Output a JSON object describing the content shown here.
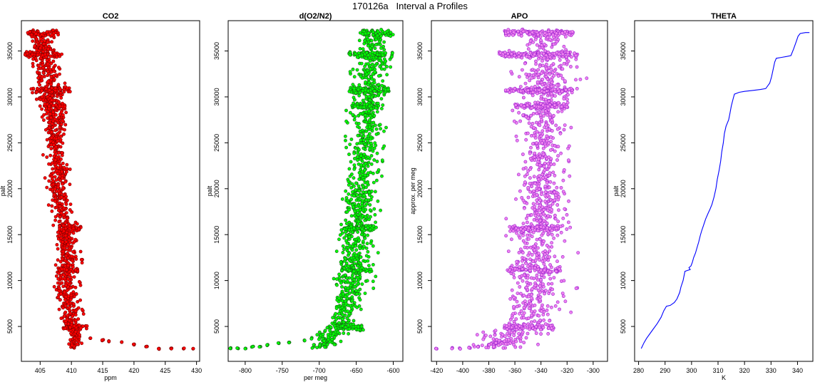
{
  "figure": {
    "title": "170126a   Interval a Profiles"
  },
  "chart_data": [
    {
      "type": "scatter",
      "title": "CO2",
      "xlabel": "ppm",
      "ylabel": "palt",
      "xlim": [
        402,
        430.5
      ],
      "ylim": [
        1200,
        38300
      ],
      "xticks": [
        405,
        410,
        415,
        420,
        425,
        430
      ],
      "yticks": [
        5000,
        10000,
        15000,
        20000,
        25000,
        30000,
        35000
      ],
      "fill_color": "#ff0000",
      "edge_color": "#7a0000",
      "series": [
        {
          "x_profile": [
            [
              2600,
              410.5
            ],
            [
              3000,
              410.5
            ],
            [
              4000,
              410.8
            ],
            [
              5000,
              410.2
            ],
            [
              6000,
              409.8
            ],
            [
              8000,
              409.3
            ],
            [
              10000,
              409.0
            ],
            [
              12000,
              409.5
            ],
            [
              14000,
              409.0
            ],
            [
              16000,
              409.0
            ],
            [
              18000,
              408.2
            ],
            [
              20000,
              407.9
            ],
            [
              22000,
              407.9
            ],
            [
              24000,
              407.6
            ],
            [
              26000,
              407.4
            ],
            [
              28000,
              407.3
            ],
            [
              30000,
              406.8
            ],
            [
              32000,
              406.5
            ],
            [
              34000,
              405.5
            ],
            [
              36000,
              405.2
            ],
            [
              37000,
              405.0
            ]
          ],
          "x_spread": [
            [
              2600,
              0.3
            ],
            [
              5000,
              0.9
            ],
            [
              10000,
              1.0
            ],
            [
              15000,
              0.9
            ],
            [
              20000,
              0.9
            ],
            [
              25000,
              0.9
            ],
            [
              30000,
              1.2
            ],
            [
              34000,
              1.0
            ],
            [
              37000,
              1.0
            ]
          ],
          "levels": [
            {
              "y": 37000,
              "xmin": 402.7,
              "xmax": 408.0
            },
            {
              "y": 34600,
              "xmin": 402.5,
              "xmax": 408.5
            },
            {
              "y": 30700,
              "xmin": 403.5,
              "xmax": 410.0
            },
            {
              "y": 29000,
              "xmin": 405.5,
              "xmax": 409.0
            },
            {
              "y": 15700,
              "xmin": 408.0,
              "xmax": 411.5
            },
            {
              "y": 11200,
              "xmin": 408.0,
              "xmax": 411.0
            },
            {
              "y": 4900,
              "xmin": 408.5,
              "xmax": 412.5
            }
          ],
          "tail": [
            [
              413,
              3700
            ],
            [
              415,
              3500
            ],
            [
              416,
              3400
            ],
            [
              418,
              3300
            ],
            [
              420,
              3000
            ],
            [
              422,
              2800
            ],
            [
              424,
              2600
            ],
            [
              426,
              2600
            ],
            [
              428,
              2600
            ],
            [
              429.5,
              2550
            ]
          ]
        }
      ]
    },
    {
      "type": "scatter",
      "title": "d(O2/N2)",
      "xlabel": "per meg",
      "ylabel": "palt",
      "xlim": [
        -823,
        -587
      ],
      "ylim": [
        1200,
        38300
      ],
      "xticks": [
        -800,
        -750,
        -700,
        -650,
        -600
      ],
      "yticks": [
        5000,
        10000,
        15000,
        20000,
        25000,
        30000,
        35000
      ],
      "fill_color": "#00ff00",
      "edge_color": "#1a5c1a",
      "series": [
        {
          "x_profile": [
            [
              2600,
              -700
            ],
            [
              4000,
              -685
            ],
            [
              5000,
              -670
            ],
            [
              7000,
              -663
            ],
            [
              9000,
              -658
            ],
            [
              11000,
              -655
            ],
            [
              13000,
              -653
            ],
            [
              15000,
              -650
            ],
            [
              17000,
              -648
            ],
            [
              19000,
              -645
            ],
            [
              21000,
              -642
            ],
            [
              23000,
              -640
            ],
            [
              25000,
              -638
            ],
            [
              27000,
              -636
            ],
            [
              29000,
              -634
            ],
            [
              31000,
              -632
            ],
            [
              33000,
              -630
            ],
            [
              35000,
              -628
            ],
            [
              37000,
              -625
            ]
          ],
          "x_spread": [
            [
              2600,
              6
            ],
            [
              5000,
              11
            ],
            [
              10000,
              12
            ],
            [
              15000,
              12
            ],
            [
              20000,
              11
            ],
            [
              25000,
              12
            ],
            [
              30000,
              14
            ],
            [
              35000,
              12
            ],
            [
              37000,
              12
            ]
          ],
          "levels": [
            {
              "y": 37000,
              "xmin": -645,
              "xmax": -600
            },
            {
              "y": 34600,
              "xmin": -660,
              "xmax": -600
            },
            {
              "y": 30700,
              "xmin": -660,
              "xmax": -605
            },
            {
              "y": 29000,
              "xmin": -655,
              "xmax": -620
            },
            {
              "y": 15700,
              "xmin": -670,
              "xmax": -625
            },
            {
              "y": 11200,
              "xmin": -672,
              "xmax": -630
            },
            {
              "y": 4900,
              "xmin": -680,
              "xmax": -640
            }
          ],
          "tail": [
            [
              -820,
              2600
            ],
            [
              -810,
              2600
            ],
            [
              -800,
              2600
            ],
            [
              -790,
              2800
            ],
            [
              -780,
              2800
            ],
            [
              -770,
              3000
            ],
            [
              -755,
              3200
            ],
            [
              -740,
              3300
            ],
            [
              -720,
              3500
            ],
            [
              -710,
              3700
            ]
          ]
        }
      ]
    },
    {
      "type": "scatter",
      "title": "APO",
      "xlabel": "",
      "ylabel": "approx. per meg",
      "xlim": [
        -424,
        -289
      ],
      "ylim": [
        1200,
        38300
      ],
      "xticks": [
        -420,
        -400,
        -380,
        -360,
        -340,
        -320,
        -300
      ],
      "yticks": [
        5000,
        10000,
        15000,
        20000,
        25000,
        30000,
        35000
      ],
      "fill_color": "#ee82ee",
      "edge_color": "#9a20d0",
      "series": [
        {
          "x_profile": [
            [
              2600,
              -375
            ],
            [
              4000,
              -365
            ],
            [
              5000,
              -350
            ],
            [
              8000,
              -345
            ],
            [
              10000,
              -344
            ],
            [
              12000,
              -343
            ],
            [
              14000,
              -342
            ],
            [
              16000,
              -341
            ],
            [
              18000,
              -340
            ],
            [
              20000,
              -339
            ],
            [
              22000,
              -339
            ],
            [
              24000,
              -338
            ],
            [
              26000,
              -338
            ],
            [
              28000,
              -338
            ],
            [
              30000,
              -337
            ],
            [
              32000,
              -337
            ],
            [
              34000,
              -337
            ],
            [
              36000,
              -336
            ],
            [
              37000,
              -336
            ]
          ],
          "x_spread": [
            [
              2600,
              12
            ],
            [
              5000,
              12
            ],
            [
              10000,
              12
            ],
            [
              15000,
              11
            ],
            [
              20000,
              9
            ],
            [
              25000,
              9
            ],
            [
              30000,
              12
            ],
            [
              35000,
              12
            ],
            [
              37000,
              12
            ]
          ],
          "levels": [
            {
              "y": 37000,
              "xmin": -368,
              "xmax": -315
            },
            {
              "y": 34600,
              "xmin": -372,
              "xmax": -312
            },
            {
              "y": 30700,
              "xmin": -368,
              "xmax": -312
            },
            {
              "y": 29000,
              "xmin": -360,
              "xmax": -320
            },
            {
              "y": 15700,
              "xmin": -365,
              "xmax": -325
            },
            {
              "y": 11200,
              "xmin": -365,
              "xmax": -325
            },
            {
              "y": 4900,
              "xmin": -368,
              "xmax": -330
            }
          ],
          "tail": [
            [
              -420,
              2600
            ],
            [
              -408,
              2600
            ],
            [
              -402,
              2600
            ],
            [
              -395,
              2700
            ],
            [
              -388,
              2800
            ],
            [
              -380,
              3000
            ],
            [
              -375,
              3200
            ]
          ]
        }
      ]
    },
    {
      "type": "line",
      "title": "THETA",
      "xlabel": "K",
      "ylabel": "palt",
      "xlim": [
        278.5,
        345.8
      ],
      "ylim": [
        1200,
        38300
      ],
      "xticks": [
        280,
        290,
        300,
        310,
        320,
        330,
        340
      ],
      "yticks": [
        5000,
        10000,
        15000,
        20000,
        25000,
        30000,
        35000
      ],
      "line_color": "#0000ff",
      "points": [
        [
          281,
          2600
        ],
        [
          282,
          3200
        ],
        [
          283,
          3700
        ],
        [
          285,
          4500
        ],
        [
          287,
          5300
        ],
        [
          288.5,
          6000
        ],
        [
          289.5,
          6700
        ],
        [
          290.5,
          7200
        ],
        [
          292,
          7300
        ],
        [
          293.5,
          7600
        ],
        [
          294.5,
          8000
        ],
        [
          295.5,
          8700
        ],
        [
          296,
          9300
        ],
        [
          296.8,
          10000
        ],
        [
          297.3,
          10700
        ],
        [
          297.5,
          11000
        ],
        [
          298.5,
          11100
        ],
        [
          299.5,
          11200
        ],
        [
          299,
          11400
        ],
        [
          299.8,
          11600
        ],
        [
          300.3,
          12000
        ],
        [
          300.8,
          12500
        ],
        [
          301.5,
          13000
        ],
        [
          302.2,
          13700
        ],
        [
          302.7,
          14200
        ],
        [
          303.3,
          14900
        ],
        [
          303.8,
          15400
        ],
        [
          304.5,
          16000
        ],
        [
          305.3,
          16700
        ],
        [
          306.2,
          17300
        ],
        [
          307,
          17800
        ],
        [
          307.7,
          18300
        ],
        [
          308.5,
          19100
        ],
        [
          309.2,
          20000
        ],
        [
          309.7,
          21000
        ],
        [
          310.4,
          22000
        ],
        [
          311,
          23000
        ],
        [
          311.4,
          24000
        ],
        [
          312,
          25000
        ],
        [
          312.4,
          26000
        ],
        [
          313,
          26800
        ],
        [
          314,
          27500
        ],
        [
          314.5,
          28200
        ],
        [
          315,
          29000
        ],
        [
          315.7,
          29800
        ],
        [
          316.2,
          30300
        ],
        [
          318,
          30500
        ],
        [
          320,
          30600
        ],
        [
          323,
          30700
        ],
        [
          326,
          30800
        ],
        [
          328,
          30900
        ],
        [
          329.5,
          31500
        ],
        [
          330.2,
          32200
        ],
        [
          330.8,
          33000
        ],
        [
          331.4,
          33800
        ],
        [
          332,
          34200
        ],
        [
          334,
          34300
        ],
        [
          336,
          34400
        ],
        [
          337.5,
          34500
        ],
        [
          338.5,
          35200
        ],
        [
          339.5,
          36000
        ],
        [
          340.2,
          36600
        ],
        [
          341,
          36900
        ],
        [
          343,
          37000
        ],
        [
          344.5,
          37000
        ]
      ]
    }
  ]
}
